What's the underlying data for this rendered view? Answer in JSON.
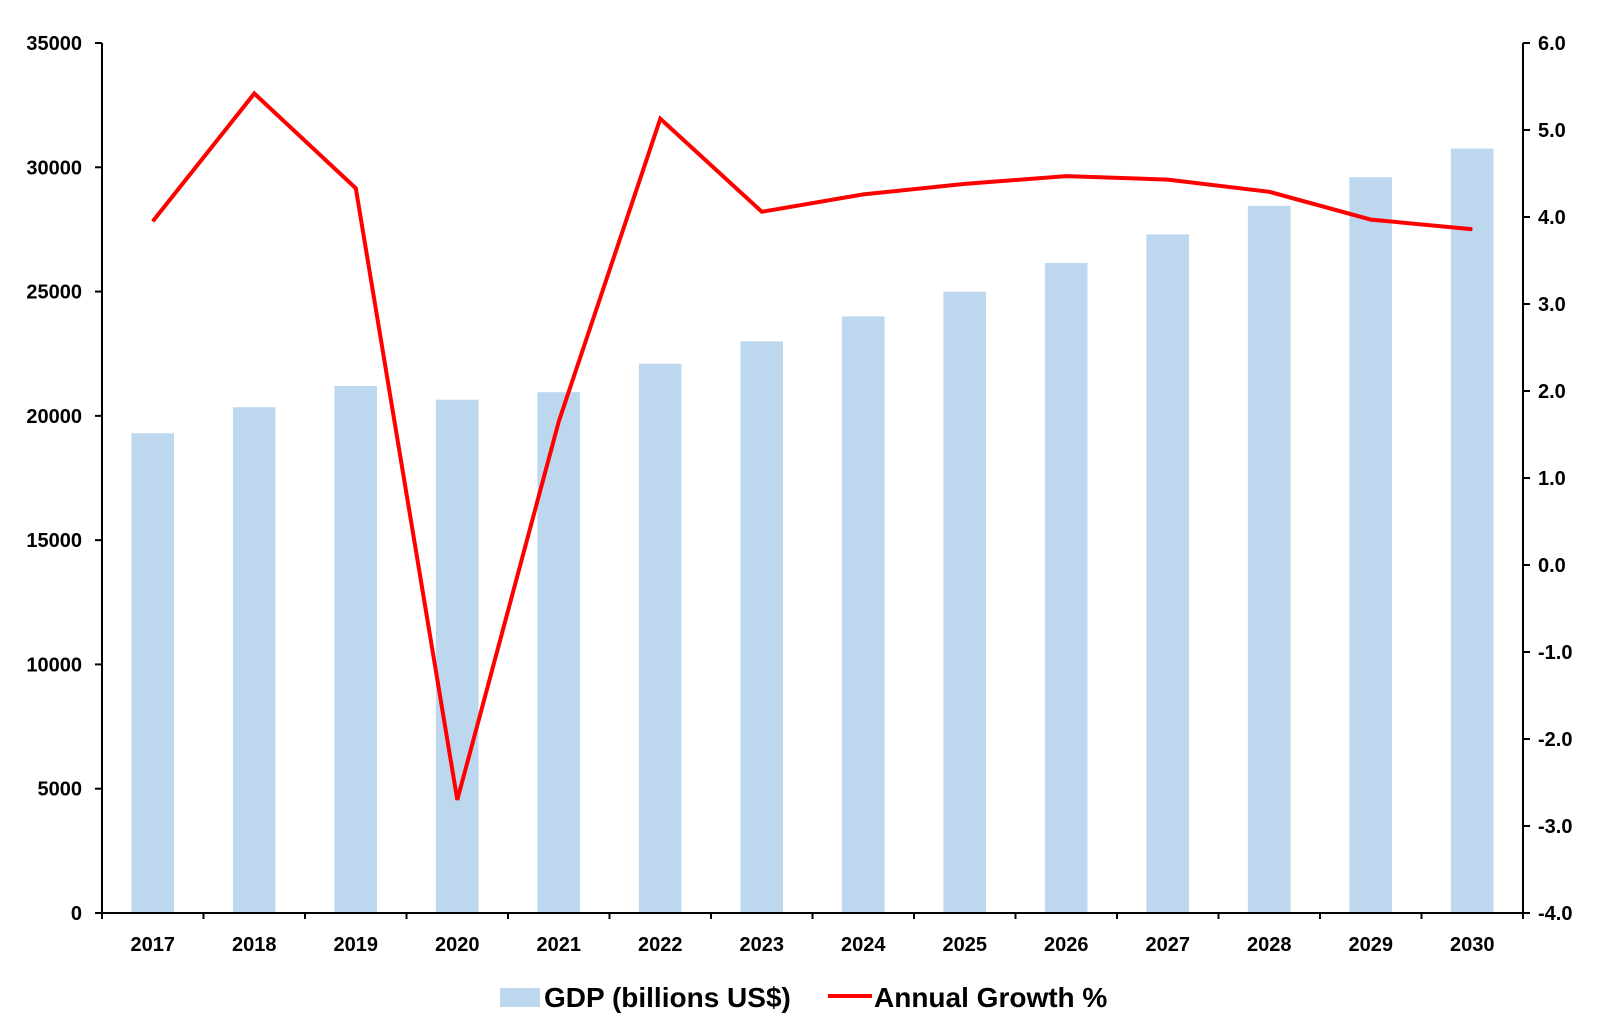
{
  "chart_data": {
    "type": "bar",
    "categories": [
      "2017",
      "2018",
      "2019",
      "2020",
      "2021",
      "2022",
      "2023",
      "2024",
      "2025",
      "2026",
      "2027",
      "2028",
      "2029",
      "2030"
    ],
    "series": [
      {
        "name": "GDP (billions US$)",
        "type": "bar",
        "axis": "left",
        "color": "#bdd7ee",
        "values": [
          19300,
          20350,
          21200,
          20650,
          20950,
          22100,
          23000,
          24000,
          25000,
          26150,
          27300,
          28450,
          29600,
          30750
        ]
      },
      {
        "name": "Annual Growth %",
        "type": "line",
        "axis": "right",
        "color": "#ff0000",
        "values": [
          3.95,
          5.42,
          4.33,
          -2.7,
          1.65,
          5.13,
          4.06,
          4.26,
          4.38,
          4.47,
          4.43,
          4.29,
          3.97,
          3.86
        ]
      }
    ],
    "y_left": {
      "lim": [
        0,
        35000
      ],
      "ticks": [
        0,
        5000,
        10000,
        15000,
        20000,
        25000,
        30000,
        35000
      ],
      "tick_labels": [
        "0",
        "5000",
        "10000",
        "15000",
        "20000",
        "25000",
        "30000",
        "35000"
      ]
    },
    "y_right": {
      "lim": [
        -4.0,
        6.0
      ],
      "ticks": [
        -4,
        -3,
        -2,
        -1,
        0,
        1,
        2,
        3,
        4,
        5,
        6
      ],
      "tick_labels": [
        "-4.0",
        "-3.0",
        "-2.0",
        "-1.0",
        "0.0",
        "1.0",
        "2.0",
        "3.0",
        "4.0",
        "5.0",
        "6.0"
      ]
    },
    "title": "",
    "xlabel": "",
    "ylabel": "",
    "grid": false,
    "legend_position": "bottom-center"
  }
}
